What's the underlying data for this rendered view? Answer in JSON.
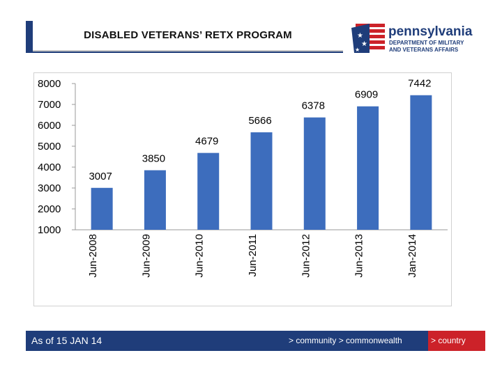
{
  "header": {
    "title": "DISABLED VETERANS’ RETX PROGRAM"
  },
  "logo": {
    "name": "pennsylvania",
    "line1": "DEPARTMENT OF MILITARY",
    "line2": "AND VETERANS AFFAIRS",
    "flag_blue": "#1f3d7a",
    "flag_red": "#cc2229"
  },
  "footer": {
    "date_text": "As of 15 JAN 14",
    "tagline": "> community > commonwealth",
    "tagline_red": "> country",
    "bar_color": "#1f3d7a",
    "accent_color": "#cc2229"
  },
  "chart_data": {
    "type": "bar",
    "categories": [
      "Jun-2008",
      "Jun-2009",
      "Jun-2010",
      "Jun-2011",
      "Jun-2012",
      "Jun-2013",
      "Jan-2014"
    ],
    "values": [
      3007,
      3850,
      4679,
      5666,
      6378,
      6909,
      7442
    ],
    "data_labels": [
      "3007",
      "3850",
      "4679",
      "5666",
      "6378",
      "6909",
      "7442"
    ],
    "yticks": [
      1000,
      2000,
      3000,
      4000,
      5000,
      6000,
      7000,
      8000
    ],
    "ylim": [
      1000,
      8000
    ],
    "grid": false,
    "legend": "none",
    "bar_color": "#3d6dbd",
    "title": "",
    "xlabel": "",
    "ylabel": ""
  }
}
